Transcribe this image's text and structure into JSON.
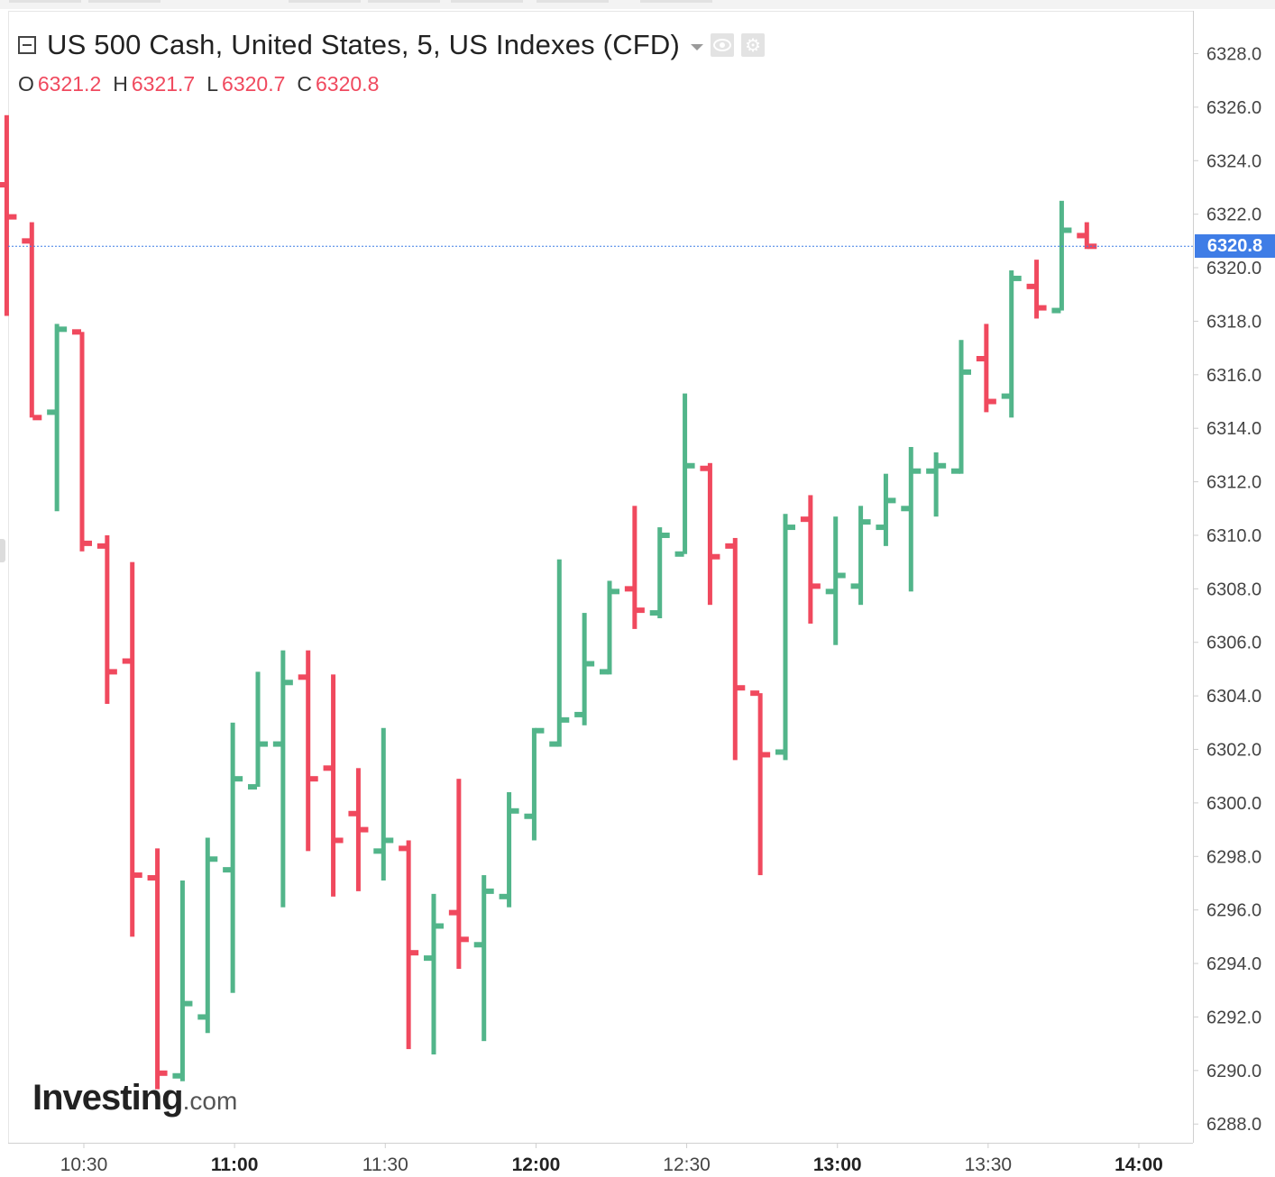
{
  "header": {
    "title": "US 500 Cash, United States, 5, US Indexes (CFD)",
    "ohlc": [
      {
        "key": "O",
        "value": "6321.2"
      },
      {
        "key": "H",
        "value": "6321.7"
      },
      {
        "key": "L",
        "value": "6320.7"
      },
      {
        "key": "C",
        "value": "6320.8"
      }
    ]
  },
  "logo": {
    "brand": "Investing",
    "suffix": ".com"
  },
  "current_price_label": "6320.8",
  "colors": {
    "up": "#52b58a",
    "down": "#f0495e",
    "price_line": "#3f7de6",
    "grid_border": "#cfcfcf"
  },
  "chart_data": {
    "type": "ohlc",
    "title": "US 500 Cash, United States, 5, US Indexes (CFD)",
    "interval": "5",
    "ylim": [
      6287.3,
      6329.6
    ],
    "y_ticks": [
      "6288.0",
      "6290.0",
      "6292.0",
      "6294.0",
      "6296.0",
      "6298.0",
      "6300.0",
      "6302.0",
      "6304.0",
      "6306.0",
      "6308.0",
      "6310.0",
      "6312.0",
      "6314.0",
      "6316.0",
      "6318.0",
      "6320.0",
      "6322.0",
      "6324.0",
      "6326.0",
      "6328.0"
    ],
    "x_ticks": [
      {
        "label": "10:30",
        "minute": 630,
        "bold": false
      },
      {
        "label": "11:00",
        "minute": 660,
        "bold": true
      },
      {
        "label": "11:30",
        "minute": 690,
        "bold": false
      },
      {
        "label": "12:00",
        "minute": 720,
        "bold": true
      },
      {
        "label": "12:30",
        "minute": 750,
        "bold": false
      },
      {
        "label": "13:00",
        "minute": 780,
        "bold": true
      },
      {
        "label": "13:30",
        "minute": 810,
        "bold": false
      },
      {
        "label": "14:00",
        "minute": 840,
        "bold": true
      }
    ],
    "current_price": 6320.8,
    "bars": [
      {
        "time": "10:15",
        "open": 6323.1,
        "high": 6325.7,
        "low": 6318.2,
        "close": 6321.9
      },
      {
        "time": "10:20",
        "open": 6321.0,
        "high": 6321.7,
        "low": 6314.4,
        "close": 6314.4
      },
      {
        "time": "10:25",
        "open": 6314.6,
        "high": 6317.9,
        "low": 6310.9,
        "close": 6317.7
      },
      {
        "time": "10:30",
        "open": 6317.6,
        "high": 6317.6,
        "low": 6309.4,
        "close": 6309.7
      },
      {
        "time": "10:35",
        "open": 6309.6,
        "high": 6310.0,
        "low": 6303.7,
        "close": 6304.9
      },
      {
        "time": "10:40",
        "open": 6305.3,
        "high": 6309.0,
        "low": 6295.0,
        "close": 6297.3
      },
      {
        "time": "10:45",
        "open": 6297.2,
        "high": 6298.3,
        "low": 6289.3,
        "close": 6289.9
      },
      {
        "time": "10:50",
        "open": 6289.8,
        "high": 6297.1,
        "low": 6289.6,
        "close": 6292.5
      },
      {
        "time": "10:55",
        "open": 6292.0,
        "high": 6298.7,
        "low": 6291.4,
        "close": 6297.9
      },
      {
        "time": "11:00",
        "open": 6297.5,
        "high": 6303.0,
        "low": 6292.9,
        "close": 6300.9
      },
      {
        "time": "11:05",
        "open": 6300.6,
        "high": 6304.9,
        "low": 6300.6,
        "close": 6302.2
      },
      {
        "time": "11:10",
        "open": 6302.2,
        "high": 6305.7,
        "low": 6296.1,
        "close": 6304.5
      },
      {
        "time": "11:15",
        "open": 6304.7,
        "high": 6305.7,
        "low": 6298.2,
        "close": 6300.9
      },
      {
        "time": "11:20",
        "open": 6301.3,
        "high": 6304.8,
        "low": 6296.5,
        "close": 6298.6
      },
      {
        "time": "11:25",
        "open": 6299.6,
        "high": 6301.3,
        "low": 6296.7,
        "close": 6299.0
      },
      {
        "time": "11:30",
        "open": 6298.2,
        "high": 6302.8,
        "low": 6297.1,
        "close": 6298.6
      },
      {
        "time": "11:35",
        "open": 6298.3,
        "high": 6298.6,
        "low": 6290.8,
        "close": 6294.4
      },
      {
        "time": "11:40",
        "open": 6294.2,
        "high": 6296.6,
        "low": 6290.6,
        "close": 6295.4
      },
      {
        "time": "11:45",
        "open": 6295.9,
        "high": 6300.9,
        "low": 6293.8,
        "close": 6294.9
      },
      {
        "time": "11:50",
        "open": 6294.7,
        "high": 6297.3,
        "low": 6291.1,
        "close": 6296.7
      },
      {
        "time": "11:55",
        "open": 6296.5,
        "high": 6300.4,
        "low": 6296.1,
        "close": 6299.7
      },
      {
        "time": "12:00",
        "open": 6299.5,
        "high": 6302.8,
        "low": 6298.6,
        "close": 6302.7
      },
      {
        "time": "12:05",
        "open": 6302.2,
        "high": 6309.1,
        "low": 6302.1,
        "close": 6303.1
      },
      {
        "time": "12:10",
        "open": 6303.3,
        "high": 6307.1,
        "low": 6302.9,
        "close": 6305.2
      },
      {
        "time": "12:15",
        "open": 6304.9,
        "high": 6308.3,
        "low": 6304.8,
        "close": 6307.9
      },
      {
        "time": "12:20",
        "open": 6308.0,
        "high": 6311.1,
        "low": 6306.5,
        "close": 6307.2
      },
      {
        "time": "12:25",
        "open": 6307.1,
        "high": 6310.3,
        "low": 6306.9,
        "close": 6310.0
      },
      {
        "time": "12:30",
        "open": 6309.3,
        "high": 6315.3,
        "low": 6309.3,
        "close": 6312.6
      },
      {
        "time": "12:35",
        "open": 6312.5,
        "high": 6312.7,
        "low": 6307.4,
        "close": 6309.2
      },
      {
        "time": "12:40",
        "open": 6309.6,
        "high": 6309.9,
        "low": 6301.6,
        "close": 6304.3
      },
      {
        "time": "12:45",
        "open": 6304.1,
        "high": 6304.1,
        "low": 6297.3,
        "close": 6301.8
      },
      {
        "time": "12:50",
        "open": 6301.9,
        "high": 6310.8,
        "low": 6301.6,
        "close": 6310.3
      },
      {
        "time": "12:55",
        "open": 6310.6,
        "high": 6311.5,
        "low": 6306.7,
        "close": 6308.1
      },
      {
        "time": "13:00",
        "open": 6307.9,
        "high": 6310.7,
        "low": 6305.9,
        "close": 6308.5
      },
      {
        "time": "13:05",
        "open": 6308.1,
        "high": 6311.1,
        "low": 6307.4,
        "close": 6310.5
      },
      {
        "time": "13:10",
        "open": 6310.3,
        "high": 6312.3,
        "low": 6309.6,
        "close": 6311.3
      },
      {
        "time": "13:15",
        "open": 6311.0,
        "high": 6313.3,
        "low": 6307.9,
        "close": 6312.4
      },
      {
        "time": "13:20",
        "open": 6312.4,
        "high": 6313.1,
        "low": 6310.7,
        "close": 6312.6
      },
      {
        "time": "13:25",
        "open": 6312.4,
        "high": 6317.3,
        "low": 6312.3,
        "close": 6316.1
      },
      {
        "time": "13:30",
        "open": 6316.6,
        "high": 6317.9,
        "low": 6314.6,
        "close": 6315.0
      },
      {
        "time": "13:35",
        "open": 6315.2,
        "high": 6319.9,
        "low": 6314.4,
        "close": 6319.6
      },
      {
        "time": "13:40",
        "open": 6319.3,
        "high": 6320.3,
        "low": 6318.1,
        "close": 6318.5
      },
      {
        "time": "13:45",
        "open": 6318.4,
        "high": 6322.5,
        "low": 6318.4,
        "close": 6321.4
      },
      {
        "time": "13:50",
        "open": 6321.2,
        "high": 6321.7,
        "low": 6320.7,
        "close": 6320.8
      }
    ]
  }
}
